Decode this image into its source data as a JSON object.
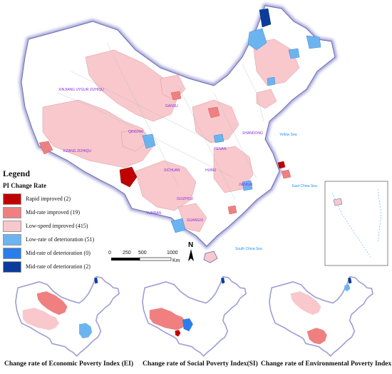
{
  "legend": {
    "title": "Legend",
    "subtitle": "PI Change Rate",
    "items": [
      {
        "label": "Rapid improved (2)",
        "color": "#c00000"
      },
      {
        "label": "Mid-rate improved (19)",
        "color": "#f08080"
      },
      {
        "label": "Low-speed improved (415)",
        "color": "#f8c8cc"
      },
      {
        "label": "Low-rate of deterioration (51)",
        "color": "#6cb4f0"
      },
      {
        "label": "Mid-rate of deterioration (0)",
        "color": "#2b7de9"
      },
      {
        "label": "Mid-rate of deterioration (2)",
        "color": "#0b3c9c"
      }
    ]
  },
  "scale_bar": {
    "ticks": [
      "0",
      "250",
      "500",
      "1000"
    ],
    "unit": "Km"
  },
  "north_arrow": "N",
  "map_labels": {
    "xinjiang": "XINJIANG  UYGUR  ZIZHIQU",
    "xizang": "XIZANG  ZIZHIQU",
    "qinghai": "QINGHAI",
    "sichuan": "SICHUAN",
    "gansu": "GANSU",
    "shandong": "SHANDONG",
    "guangxi": "GUANGXI",
    "yunnan": "YUNNAN",
    "hubei": "HUBEI",
    "henan": "HENAN",
    "jiangxi": "JIANGXI",
    "guizhou": "GUIZHOU",
    "yellow_sea": "Yellow Sea",
    "east_china_sea": "East China Sea",
    "south_china_sea": "South China Sea"
  },
  "captions": {
    "ei": "Change rate of Economic Poverty Index (EI)",
    "si": "Change rate of Social Poverty Index(SI)",
    "ni": "Change rate of Environmental Poverty Index (NI)"
  },
  "colors": {
    "background_land": "#ffffff",
    "border_glow": "#9fa0d8",
    "county_line": "#bdbdbd",
    "text_label": "#8a2be2",
    "sea_label": "#1e90ff"
  }
}
